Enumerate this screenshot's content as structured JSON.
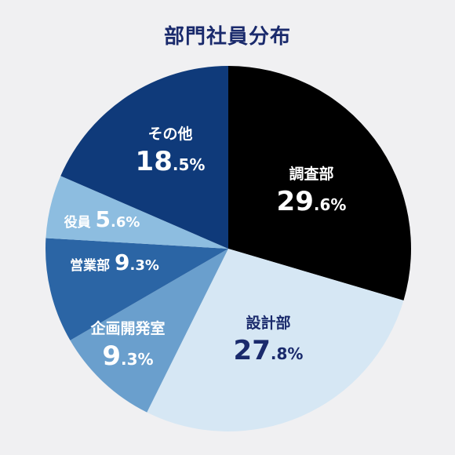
{
  "chart_data": {
    "type": "pie",
    "title": "部門社員分布",
    "slices": [
      {
        "label": "調査部",
        "value": 29.6,
        "pct_text": "29.6%",
        "color": "#000000",
        "text_color": "#ffffff"
      },
      {
        "label": "設計部",
        "value": 27.8,
        "pct_text": "27.8%",
        "color": "#d6e7f4",
        "text_color": "#1a2a6c"
      },
      {
        "label": "企画開発室",
        "value": 9.3,
        "pct_text": "9.3%",
        "color": "#6a9fcd",
        "text_color": "#ffffff"
      },
      {
        "label": "営業部",
        "value": 9.3,
        "pct_text": "9.3%",
        "color": "#2b65a5",
        "text_color": "#ffffff"
      },
      {
        "label": "役員",
        "value": 5.6,
        "pct_text": "5.6%",
        "color": "#8dbde0",
        "text_color": "#ffffff"
      },
      {
        "label": "その他",
        "value": 18.5,
        "pct_text": "18.5%",
        "color": "#0f3a7a",
        "text_color": "#ffffff"
      }
    ]
  }
}
